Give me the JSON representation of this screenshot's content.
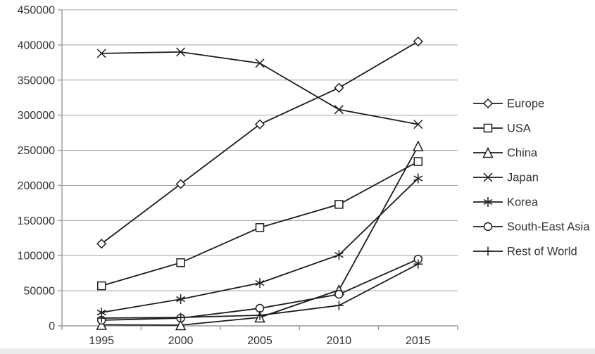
{
  "chart_data": {
    "type": "line",
    "title": "",
    "xlabel": "",
    "ylabel": "",
    "categories": [
      "1995",
      "2000",
      "2005",
      "2010",
      "2015"
    ],
    "series": [
      {
        "name": "Europe",
        "marker": "diamond",
        "values": [
          117000,
          202000,
          287000,
          339000,
          405000
        ]
      },
      {
        "name": "USA",
        "marker": "square",
        "values": [
          57000,
          90000,
          140000,
          173000,
          234000
        ]
      },
      {
        "name": "China",
        "marker": "triangle",
        "values": [
          1500,
          1000,
          12000,
          51000,
          256000
        ]
      },
      {
        "name": "Japan",
        "marker": "x",
        "values": [
          388000,
          390000,
          374000,
          308000,
          287000
        ]
      },
      {
        "name": "Korea",
        "marker": "asterisk",
        "values": [
          19000,
          38000,
          61000,
          101000,
          210000
        ]
      },
      {
        "name": "South-East Asia",
        "marker": "circle",
        "values": [
          8000,
          11000,
          25000,
          45000,
          95000
        ]
      },
      {
        "name": "Rest of World",
        "marker": "plus",
        "values": [
          11000,
          12000,
          15000,
          29000,
          88000
        ]
      }
    ],
    "ylim": [
      0,
      450000
    ],
    "ytick_step": 50000,
    "y_tick_labels": [
      "0",
      "50000",
      "100000",
      "150000",
      "200000",
      "250000",
      "300000",
      "350000",
      "400000",
      "450000"
    ],
    "grid": true,
    "legend_position": "right",
    "legend_items": [
      "Europe",
      "USA",
      "China",
      "Japan",
      "Korea",
      "South-East Asia",
      "Rest of World"
    ],
    "colors": {
      "series_line": "#1c1c1c",
      "marker_fill": "#ffffff",
      "grid": "#a0a0a0",
      "axis": "#9a9a9a",
      "text": "#333333",
      "background": "#ffffff",
      "bottom_strip": "#eaeaea"
    }
  }
}
